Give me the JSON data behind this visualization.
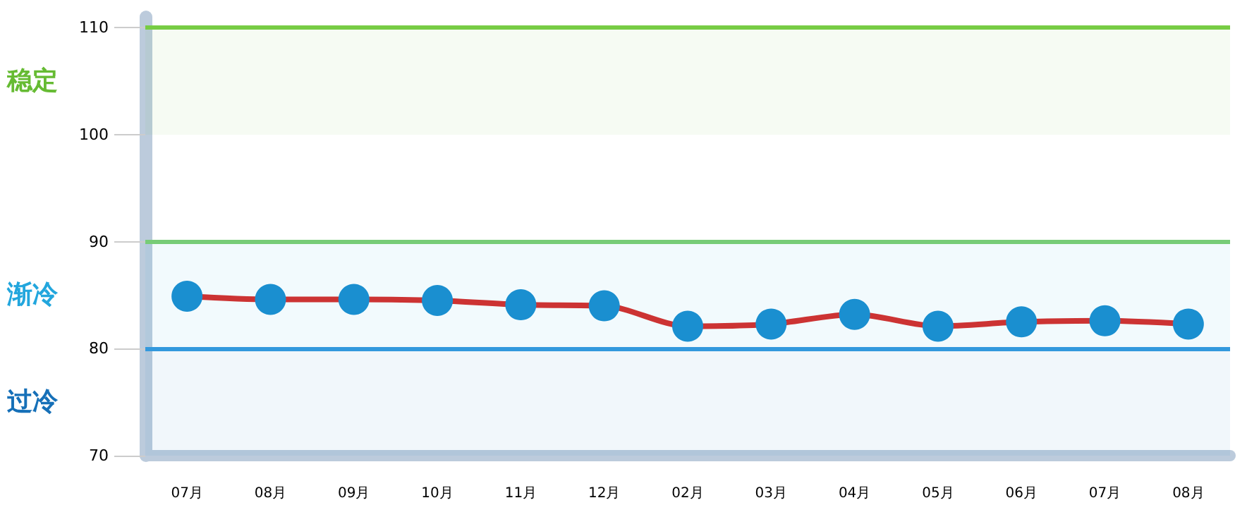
{
  "chart_data": {
    "type": "line",
    "categories": [
      "07月",
      "08月",
      "09月",
      "10月",
      "11月",
      "12月",
      "02月",
      "03月",
      "04月",
      "05月",
      "06月",
      "07月",
      "08月"
    ],
    "series": [
      {
        "color": "#cc3333",
        "values": [
          84.9,
          84.6,
          84.6,
          84.5,
          84.1,
          84.0,
          82.1,
          82.3,
          83.2,
          82.1,
          82.5,
          82.6,
          82.3
        ]
      }
    ],
    "ylim": [
      70,
      111
    ],
    "yticks": [
      70,
      80,
      90,
      100,
      110
    ],
    "marker": "circle",
    "line_style": "solid",
    "grid": false,
    "ref_lines": [
      {
        "axis": "y",
        "value": 110,
        "color": "#77cc44"
      },
      {
        "axis": "y",
        "value": 90,
        "color": "#77cc77"
      },
      {
        "axis": "y",
        "value": 80,
        "color": "#3399dd"
      }
    ],
    "bands": [
      {
        "axis": "y",
        "from": 100,
        "to": 110,
        "label": "稳定",
        "color": "#66bb33"
      },
      {
        "axis": "y",
        "from": 80,
        "to": 90,
        "label": "渐冷",
        "color": "#22a6dd"
      },
      {
        "axis": "y",
        "from": 70,
        "to": 80,
        "label": "过冷",
        "color": "#1670b8"
      }
    ]
  }
}
